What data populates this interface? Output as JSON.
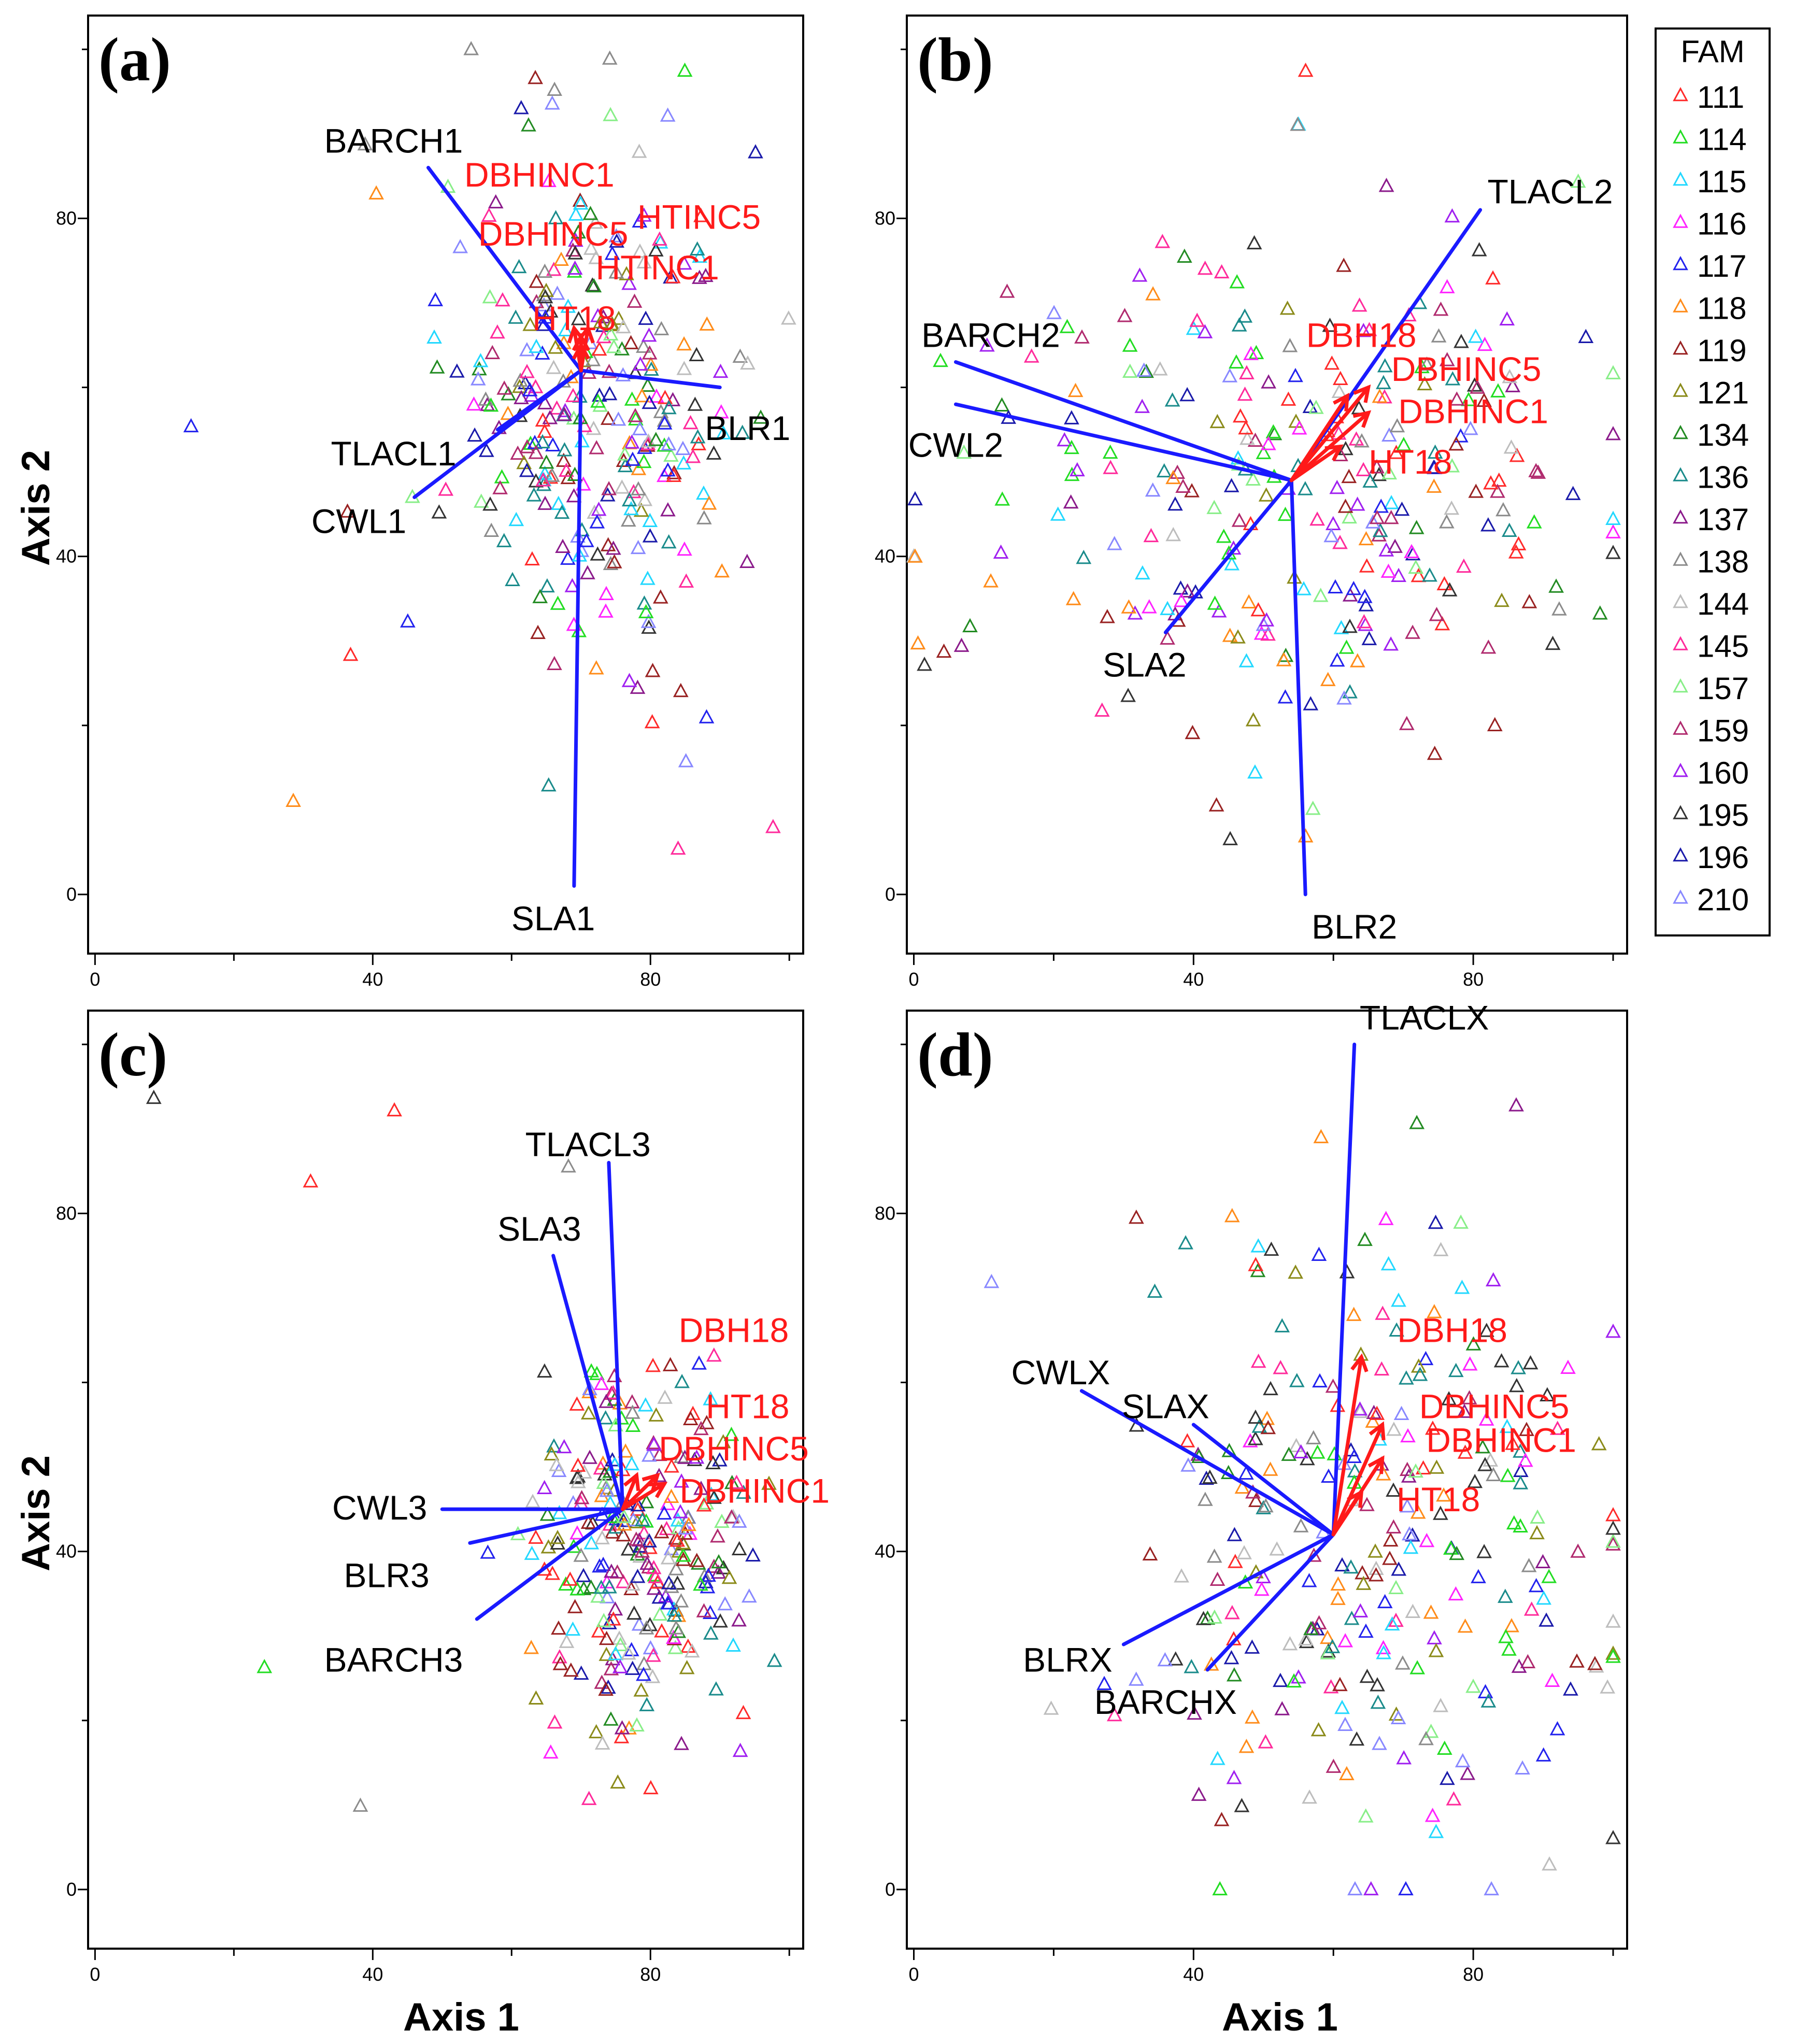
{
  "figure": {
    "y_axis_title": "Axis 2",
    "x_axis_title": "Axis 1",
    "legend_title": "FAM"
  },
  "colors": {
    "axes": "#000000",
    "score_vector": "#1a1aff",
    "growth_vector": "#ff1a1a",
    "family": {
      "111": "#ff2a2a",
      "114": "#22dd22",
      "115": "#22d8ff",
      "116": "#ff22ff",
      "117": "#2222ee",
      "118": "#ff8c1a",
      "119": "#992222",
      "121": "#8b8b1a",
      "134": "#228b22",
      "136": "#1a8b8b",
      "137": "#8b1a8b",
      "138": "#8b8b8b",
      "144": "#bdbdbd",
      "145": "#ff2a9b",
      "157": "#88ee88",
      "159": "#b02a6e",
      "160": "#a020f0",
      "195": "#333333",
      "196": "#1a1aaa",
      "210": "#8888ff"
    }
  },
  "legend": {
    "title": "FAM",
    "items": [
      "111",
      "114",
      "115",
      "116",
      "117",
      "118",
      "119",
      "121",
      "134",
      "136",
      "137",
      "138",
      "144",
      "145",
      "157",
      "159",
      "160",
      "195",
      "196",
      "210"
    ]
  },
  "chart_data": [
    {
      "type": "scatter",
      "panel": "(a)",
      "xlim": [
        -1,
        102
      ],
      "ylim": [
        -7,
        104
      ],
      "xticks": [
        0,
        40,
        80
      ],
      "yticks": [
        0,
        40,
        80
      ],
      "xtick_labels": [
        "0",
        "40",
        "80"
      ],
      "ytick_labels": [
        "0",
        "40",
        "80"
      ],
      "origin": [
        70,
        62
      ],
      "vectors": [
        {
          "label": "BARCH1",
          "group": "score",
          "end": [
            48,
            86
          ],
          "label_pos": [
            43,
            89
          ]
        },
        {
          "label": "BLR1",
          "group": "score",
          "end": [
            90,
            60
          ],
          "label_pos": [
            94,
            55
          ]
        },
        {
          "label": "TLACL1",
          "group": "score",
          "end": [
            58,
            55
          ],
          "label_pos": [
            43,
            52
          ]
        },
        {
          "label": "CWL1",
          "group": "score",
          "end": [
            46,
            47
          ],
          "label_pos": [
            38,
            44
          ]
        },
        {
          "label": "SLA1",
          "group": "score",
          "end": [
            69,
            1
          ],
          "label_pos": [
            66,
            -3
          ]
        },
        {
          "label": "DBHINC1",
          "group": "growth",
          "end": [
            69,
            67
          ],
          "label_pos": [
            64,
            85
          ]
        },
        {
          "label": "DBHINC5",
          "group": "growth",
          "end": [
            70,
            66
          ],
          "label_pos": [
            66,
            78
          ]
        },
        {
          "label": "HTINC5",
          "group": "growth",
          "end": [
            71,
            67
          ],
          "label_pos": [
            87,
            80
          ]
        },
        {
          "label": "HTINC1",
          "group": "growth",
          "end": [
            70,
            66
          ],
          "label_pos": [
            81,
            74
          ]
        },
        {
          "label": "HT18",
          "group": "growth",
          "end": [
            70,
            65
          ],
          "label_pos": [
            69,
            68
          ]
        }
      ]
    },
    {
      "type": "scatter",
      "panel": "(b)",
      "xlim": [
        -1,
        102
      ],
      "ylim": [
        -7,
        104
      ],
      "xticks": [
        0,
        40,
        80
      ],
      "yticks": [
        0,
        40,
        80
      ],
      "xtick_labels": [
        "0",
        "40",
        "80"
      ],
      "ytick_labels": [
        "0",
        "40",
        "80"
      ],
      "origin": [
        54,
        49
      ],
      "vectors": [
        {
          "label": "TLACL2",
          "group": "score",
          "end": [
            81,
            81
          ],
          "label_pos": [
            91,
            83
          ]
        },
        {
          "label": "BARCH2",
          "group": "score",
          "end": [
            6,
            63
          ],
          "label_pos": [
            11,
            66
          ]
        },
        {
          "label": "CWL2",
          "group": "score",
          "end": [
            6,
            58
          ],
          "label_pos": [
            6,
            53
          ]
        },
        {
          "label": "SLA2",
          "group": "score",
          "end": [
            36,
            31
          ],
          "label_pos": [
            33,
            27
          ]
        },
        {
          "label": "BLR2",
          "group": "score",
          "end": [
            56,
            0
          ],
          "label_pos": [
            63,
            -4
          ]
        },
        {
          "label": "DBH18",
          "group": "growth",
          "end": [
            62,
            59
          ],
          "label_pos": [
            64,
            66
          ]
        },
        {
          "label": "DBHINC5",
          "group": "growth",
          "end": [
            65,
            60
          ],
          "label_pos": [
            79,
            62
          ]
        },
        {
          "label": "DBHINC1",
          "group": "growth",
          "end": [
            65,
            57
          ],
          "label_pos": [
            80,
            57
          ]
        },
        {
          "label": "HT18",
          "group": "growth",
          "end": [
            61,
            53
          ],
          "label_pos": [
            71,
            51
          ]
        }
      ]
    },
    {
      "type": "scatter",
      "panel": "(c)",
      "xlim": [
        -1,
        102
      ],
      "ylim": [
        -7,
        104
      ],
      "xticks": [
        0,
        40,
        80
      ],
      "yticks": [
        0,
        40,
        80
      ],
      "xtick_labels": [
        "0",
        "40",
        "80"
      ],
      "ytick_labels": [
        "0",
        "40",
        "80"
      ],
      "origin": [
        76,
        45
      ],
      "vectors": [
        {
          "label": "TLACL3",
          "group": "score",
          "end": [
            74,
            86
          ],
          "label_pos": [
            71,
            88
          ]
        },
        {
          "label": "SLA3",
          "group": "score",
          "end": [
            66,
            75
          ],
          "label_pos": [
            64,
            78
          ]
        },
        {
          "label": "CWL3",
          "group": "score",
          "end": [
            50,
            45
          ],
          "label_pos": [
            41,
            45
          ]
        },
        {
          "label": "BLR3",
          "group": "score",
          "end": [
            54,
            41
          ],
          "label_pos": [
            42,
            37
          ]
        },
        {
          "label": "BARCH3",
          "group": "score",
          "end": [
            55,
            32
          ],
          "label_pos": [
            43,
            27
          ]
        },
        {
          "label": "DBH18",
          "group": "growth",
          "end": [
            78,
            49
          ],
          "label_pos": [
            92,
            66
          ]
        },
        {
          "label": "HT18",
          "group": "growth",
          "end": [
            81,
            49
          ],
          "label_pos": [
            94,
            57
          ]
        },
        {
          "label": "DBHINC5",
          "group": "growth",
          "end": [
            81,
            49
          ],
          "label_pos": [
            92,
            52
          ]
        },
        {
          "label": "DBHINC1",
          "group": "growth",
          "end": [
            82,
            48
          ],
          "label_pos": [
            95,
            47
          ]
        }
      ]
    },
    {
      "type": "scatter",
      "panel": "(d)",
      "xlim": [
        -1,
        102
      ],
      "ylim": [
        -7,
        104
      ],
      "xticks": [
        0,
        40,
        80
      ],
      "yticks": [
        0,
        40,
        80
      ],
      "xtick_labels": [
        "0",
        "40",
        "80"
      ],
      "ytick_labels": [
        "0",
        "40",
        "80"
      ],
      "origin": [
        60,
        42
      ],
      "vectors": [
        {
          "label": "TLACLX",
          "group": "score",
          "end": [
            63,
            100
          ],
          "label_pos": [
            73,
            103
          ]
        },
        {
          "label": "CWLX",
          "group": "score",
          "end": [
            24,
            59
          ],
          "label_pos": [
            21,
            61
          ]
        },
        {
          "label": "SLAX",
          "group": "score",
          "end": [
            40,
            55
          ],
          "label_pos": [
            36,
            57
          ]
        },
        {
          "label": "BLRX",
          "group": "score",
          "end": [
            30,
            29
          ],
          "label_pos": [
            22,
            27
          ]
        },
        {
          "label": "BARCHX",
          "group": "score",
          "end": [
            42,
            26
          ],
          "label_pos": [
            36,
            22
          ]
        },
        {
          "label": "DBH18",
          "group": "growth",
          "end": [
            64,
            63
          ],
          "label_pos": [
            77,
            66
          ]
        },
        {
          "label": "DBHINC5",
          "group": "growth",
          "end": [
            67,
            55
          ],
          "label_pos": [
            83,
            57
          ]
        },
        {
          "label": "DBHINC1",
          "group": "growth",
          "end": [
            67,
            51
          ],
          "label_pos": [
            84,
            53
          ]
        },
        {
          "label": "HT18",
          "group": "growth",
          "end": [
            64,
            47
          ],
          "label_pos": [
            75,
            46
          ]
        }
      ]
    }
  ]
}
